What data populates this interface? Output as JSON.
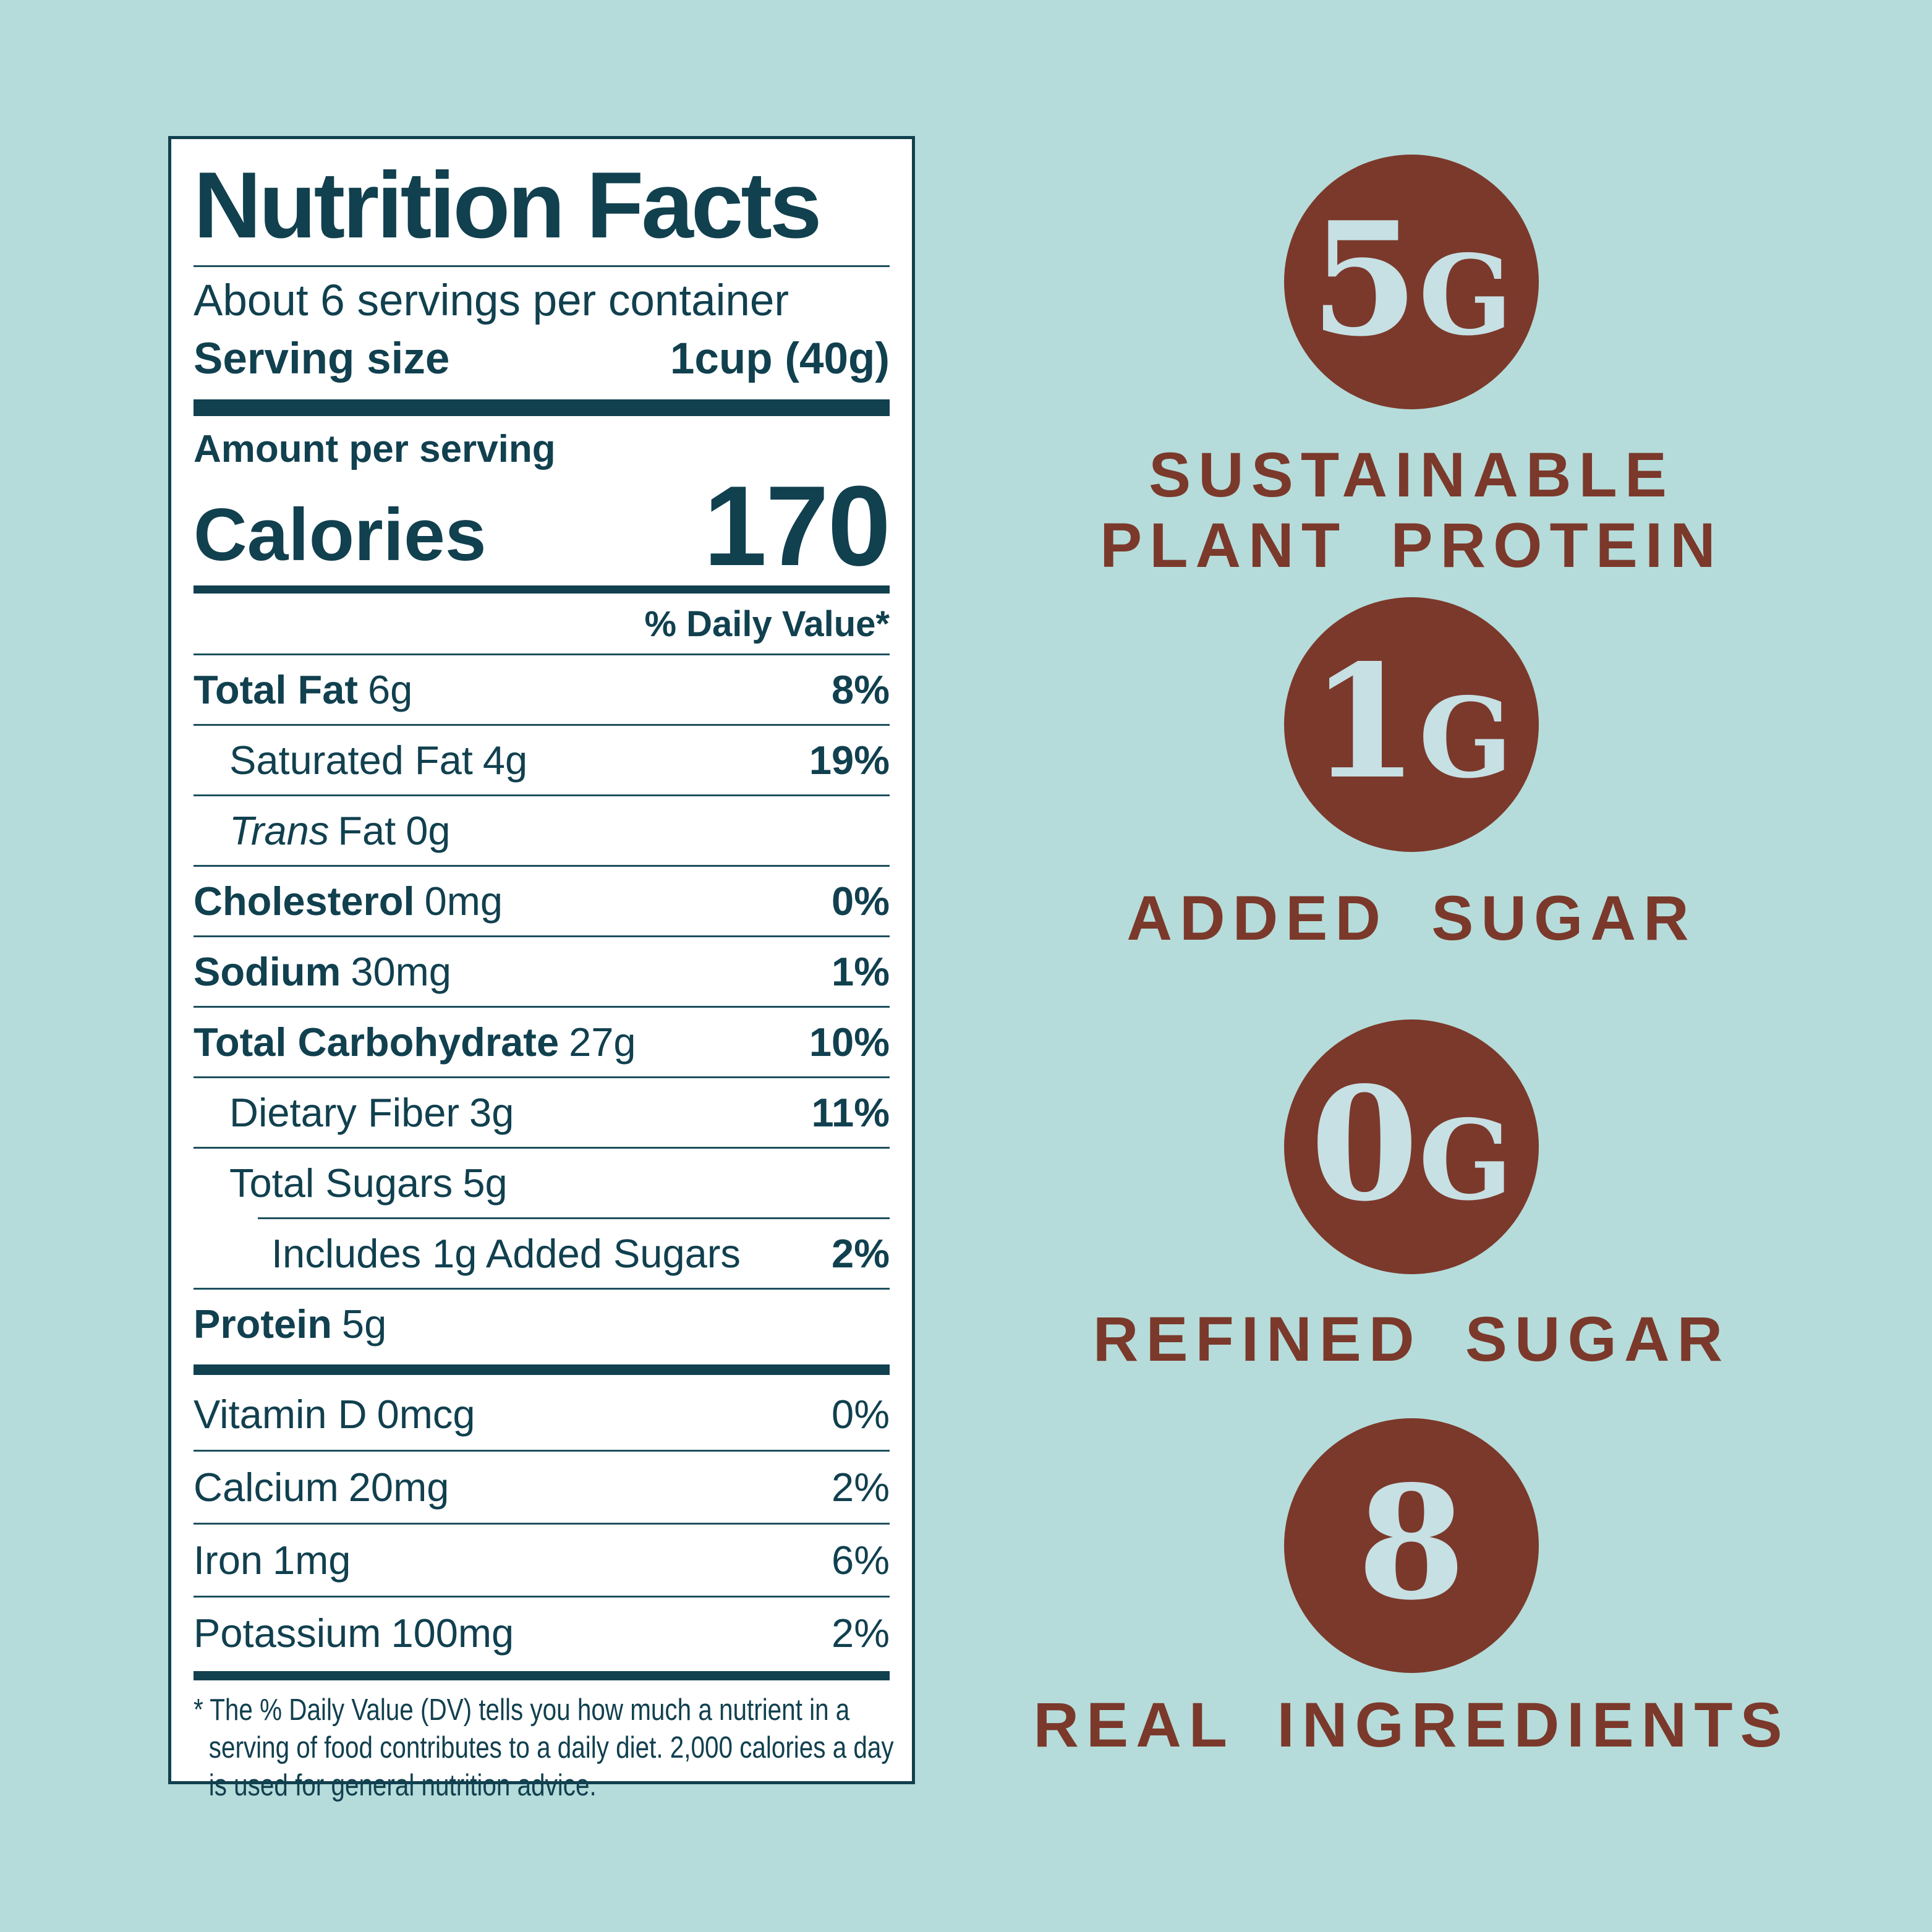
{
  "colors": {
    "background": "#b5dcda",
    "label_text": "#11404f",
    "label_background": "#ffffff",
    "badge_brown": "#7b392b",
    "badge_digit_blue": "#c6e0e4"
  },
  "label": {
    "title": "Nutrition Facts",
    "servings_per_container": "About 6 servings per container",
    "serving_size_label": "Serving size",
    "serving_size_value": "1cup (40g)",
    "amount_per_serving": "Amount per serving",
    "calories_label": "Calories",
    "calories_value": "170",
    "daily_value_header": "% Daily Value*",
    "rows": [
      {
        "name": "Total Fat",
        "amount": "6g",
        "dv": "8%"
      },
      {
        "name": "Saturated Fat",
        "amount": "4g",
        "dv": "19%"
      },
      {
        "name_italic": "Trans",
        "name": "Fat",
        "amount": "0g",
        "dv": ""
      },
      {
        "name": "Cholesterol",
        "amount": "0mg",
        "dv": "0%"
      },
      {
        "name": "Sodium",
        "amount": "30mg",
        "dv": "1%"
      },
      {
        "name": "Total Carbohydrate",
        "amount": "27g",
        "dv": "10%"
      },
      {
        "name": "Dietary Fiber",
        "amount": "3g",
        "dv": "11%"
      },
      {
        "name": "Total Sugars",
        "amount": "5g",
        "dv": ""
      },
      {
        "name": "Includes 1g Added Sugars",
        "amount": "",
        "dv": "2%"
      },
      {
        "name": "Protein",
        "amount": "5g",
        "dv": ""
      }
    ],
    "vitamins": [
      {
        "name": "Vitamin D",
        "amount": "0mcg",
        "dv": "0%"
      },
      {
        "name": "Calcium",
        "amount": "20mg",
        "dv": "2%"
      },
      {
        "name": "Iron",
        "amount": "1mg",
        "dv": "6%"
      },
      {
        "name": "Potassium",
        "amount": "100mg",
        "dv": "2%"
      }
    ],
    "footnote": "* The % Daily Value (DV) tells you how much a nutrient in a serving of food contributes to a daily diet. 2,000 calories a day is used for general nutrition advice."
  },
  "badges": [
    {
      "value": "5",
      "unit": "G",
      "line1": "SUSTAINABLE",
      "line2": "PLANT PROTEIN"
    },
    {
      "value": "1",
      "unit": "G",
      "line1": "ADDED SUGAR"
    },
    {
      "value": "0",
      "unit": "G",
      "line1": "REFINED SUGAR"
    },
    {
      "value": "8",
      "unit": "",
      "line1": "REAL INGREDIENTS"
    }
  ]
}
